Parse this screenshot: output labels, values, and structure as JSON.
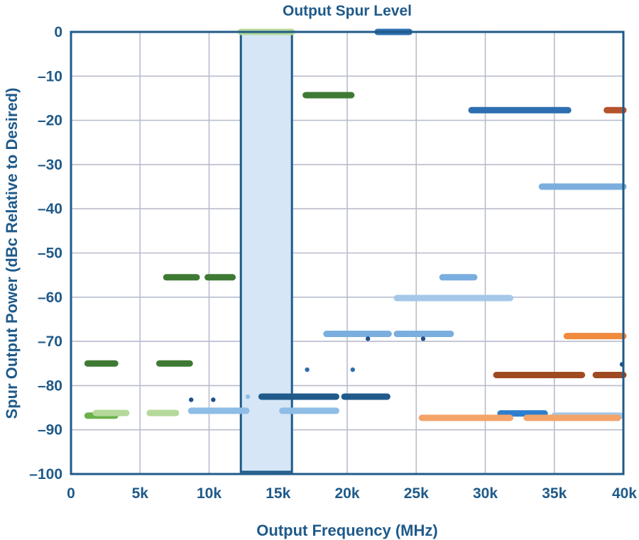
{
  "chart_data": {
    "type": "scatter",
    "title": "Output Spur Level",
    "xlabel": "Output Frequency (MHz)",
    "ylabel": "Spur Output Power (dBc Relative to Desired)",
    "xlim": [
      0,
      40000
    ],
    "ylim": [
      -100,
      0
    ],
    "grid": true,
    "x_ticks": [
      0,
      5000,
      10000,
      15000,
      20000,
      25000,
      30000,
      35000,
      40000
    ],
    "x_tick_labels": [
      "0",
      "5k",
      "10k",
      "15k",
      "20k",
      "25k",
      "30k",
      "35k",
      "40k"
    ],
    "y_ticks": [
      0,
      -10,
      -20,
      -30,
      -40,
      -50,
      -60,
      -70,
      -80,
      -90,
      -100
    ],
    "y_tick_labels": [
      "0",
      "–10",
      "–20",
      "–30",
      "–40",
      "–50",
      "–60",
      "–70",
      "–80",
      "–90",
      "–100"
    ],
    "highlight_band": {
      "x": [
        12300,
        16000
      ],
      "y": [
        -99.5,
        0
      ],
      "fill": "#d6e6f6",
      "stroke": "#1f5a8a"
    },
    "segments": [
      {
        "x": [
          1200,
          3200
        ],
        "y": -75.0,
        "color": "#3e7a34"
      },
      {
        "x": [
          6400,
          8600
        ],
        "y": -75.0,
        "color": "#3e7a34"
      },
      {
        "x": [
          6900,
          9100
        ],
        "y": -55.5,
        "color": "#3e7a34"
      },
      {
        "x": [
          9900,
          11700
        ],
        "y": -55.5,
        "color": "#3e7a34"
      },
      {
        "x": [
          17000,
          20300
        ],
        "y": -14.3,
        "color": "#3e7a34"
      },
      {
        "x": [
          1200,
          3200
        ],
        "y": -86.8,
        "color": "#6ab14a"
      },
      {
        "x": [
          1800,
          4000
        ],
        "y": -86.2,
        "color": "#b4d99a"
      },
      {
        "x": [
          5700,
          7600
        ],
        "y": -86.2,
        "color": "#b4d99a"
      },
      {
        "x": [
          12300,
          16000
        ],
        "y": 0.0,
        "color": "#b4d99a"
      },
      {
        "x": [
          22200,
          24500
        ],
        "y": 0.0,
        "color": "#2d6fb0"
      },
      {
        "x": [
          29000,
          36000
        ],
        "y": -17.7,
        "color": "#2d6fb0"
      },
      {
        "x": [
          13800,
          16800
        ],
        "y": -82.5,
        "color": "#1f5a8a"
      },
      {
        "x": [
          16800,
          19200
        ],
        "y": -82.5,
        "color": "#1f5a8a"
      },
      {
        "x": [
          19800,
          22900
        ],
        "y": -82.5,
        "color": "#1f5a8a"
      },
      {
        "x": [
          31100,
          34300
        ],
        "y": -86.3,
        "color": "#2d7fce"
      },
      {
        "x": [
          34100,
          40000
        ],
        "y": -35.0,
        "color": "#7aaede"
      },
      {
        "x": [
          26900,
          29200
        ],
        "y": -55.5,
        "color": "#7aaede"
      },
      {
        "x": [
          23600,
          31800
        ],
        "y": -60.2,
        "color": "#a5c8e8"
      },
      {
        "x": [
          18500,
          23000
        ],
        "y": -68.3,
        "color": "#7aaede"
      },
      {
        "x": [
          23600,
          27500
        ],
        "y": -68.3,
        "color": "#7aaede"
      },
      {
        "x": [
          8700,
          12700
        ],
        "y": -85.7,
        "color": "#8ebde5"
      },
      {
        "x": [
          15300,
          19200
        ],
        "y": -85.7,
        "color": "#8ebde5"
      },
      {
        "x": [
          35000,
          39800
        ],
        "y": -86.8,
        "color": "#a5c8e8"
      },
      {
        "x": [
          38800,
          40000
        ],
        "y": -17.7,
        "color": "#b5532a"
      },
      {
        "x": [
          30800,
          37000
        ],
        "y": -77.6,
        "color": "#a04a23"
      },
      {
        "x": [
          38000,
          40000
        ],
        "y": -77.6,
        "color": "#a04a23"
      },
      {
        "x": [
          35900,
          40000
        ],
        "y": -68.8,
        "color": "#f08a3c"
      },
      {
        "x": [
          25400,
          31800
        ],
        "y": -87.3,
        "color": "#f4a46a"
      },
      {
        "x": [
          33000,
          39600
        ],
        "y": -87.3,
        "color": "#f4a46a"
      }
    ],
    "isolated_points": [
      {
        "x": 8700,
        "y": -83.2,
        "color": "#1f4f8a"
      },
      {
        "x": 10300,
        "y": -83.2,
        "color": "#1f4f8a"
      },
      {
        "x": 12800,
        "y": -82.5,
        "color": "#8ebde5"
      },
      {
        "x": 17100,
        "y": -76.4,
        "color": "#2d6fb0"
      },
      {
        "x": 20400,
        "y": -76.4,
        "color": "#2d6fb0"
      },
      {
        "x": 21500,
        "y": -69.4,
        "color": "#1f4f8a"
      },
      {
        "x": 25500,
        "y": -69.4,
        "color": "#1f4f8a"
      },
      {
        "x": 39900,
        "y": -75.2,
        "color": "#1f4f8a"
      }
    ]
  }
}
